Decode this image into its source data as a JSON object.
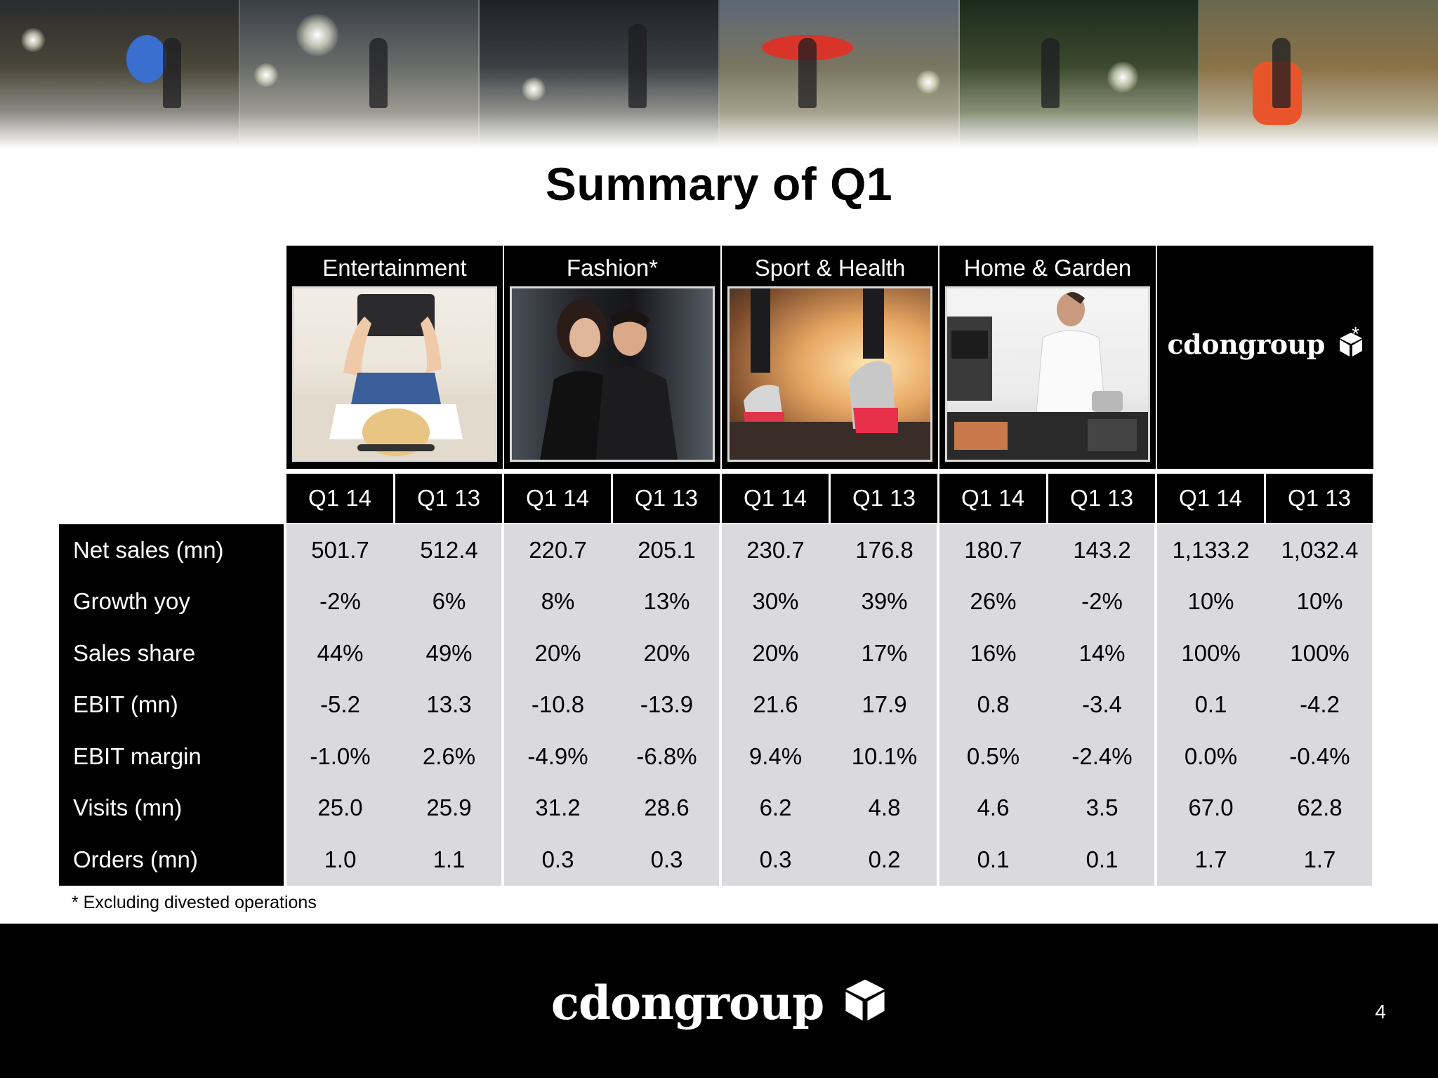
{
  "title": "Summary of Q1",
  "categories": [
    {
      "label": "Entertainment"
    },
    {
      "label": "Fashion*"
    },
    {
      "label": "Sport & Health"
    },
    {
      "label": "Home & Garden"
    },
    {
      "label": "",
      "logo_text": "cdongroup",
      "logo_mark": "*"
    }
  ],
  "period_headers": [
    "Q1 14",
    "Q1 13"
  ],
  "rows": [
    {
      "label": "Net sales (mn)",
      "values": [
        "501.7",
        "512.4",
        "220.7",
        "205.1",
        "230.7",
        "176.8",
        "180.7",
        "143.2",
        "1,133.2",
        "1,032.4"
      ]
    },
    {
      "label": "Growth yoy",
      "values": [
        "-2%",
        "6%",
        "8%",
        "13%",
        "30%",
        "39%",
        "26%",
        "-2%",
        "10%",
        "10%"
      ]
    },
    {
      "label": "Sales share",
      "values": [
        "44%",
        "49%",
        "20%",
        "20%",
        "20%",
        "17%",
        "16%",
        "14%",
        "100%",
        "100%"
      ]
    },
    {
      "label": "EBIT (mn)",
      "values": [
        "-5.2",
        "13.3",
        "-10.8",
        "-13.9",
        "21.6",
        "17.9",
        "0.8",
        "-3.4",
        "0.1",
        "-4.2"
      ]
    },
    {
      "label": "EBIT margin",
      "values": [
        "-1.0%",
        "2.6%",
        "-4.9%",
        "-6.8%",
        "9.4%",
        "10.1%",
        "0.5%",
        "-2.4%",
        "0.0%",
        "-0.4%"
      ]
    },
    {
      "label": "Visits (mn)",
      "values": [
        "25.0",
        "25.9",
        "31.2",
        "28.6",
        "6.2",
        "4.8",
        "4.6",
        "3.5",
        "67.0",
        "62.8"
      ]
    },
    {
      "label": "Orders (mn)",
      "values": [
        "1.0",
        "1.1",
        "0.3",
        "0.3",
        "0.3",
        "0.2",
        "0.1",
        "0.1",
        "1.7",
        "1.7"
      ]
    }
  ],
  "footnote": "* Excluding divested operations",
  "footer": {
    "logo_text": "cdongroup",
    "page_number": "4"
  },
  "colors": {
    "header_bg": "#000000",
    "cell_bg": "#dad9dd",
    "text_light": "#ffffff"
  }
}
